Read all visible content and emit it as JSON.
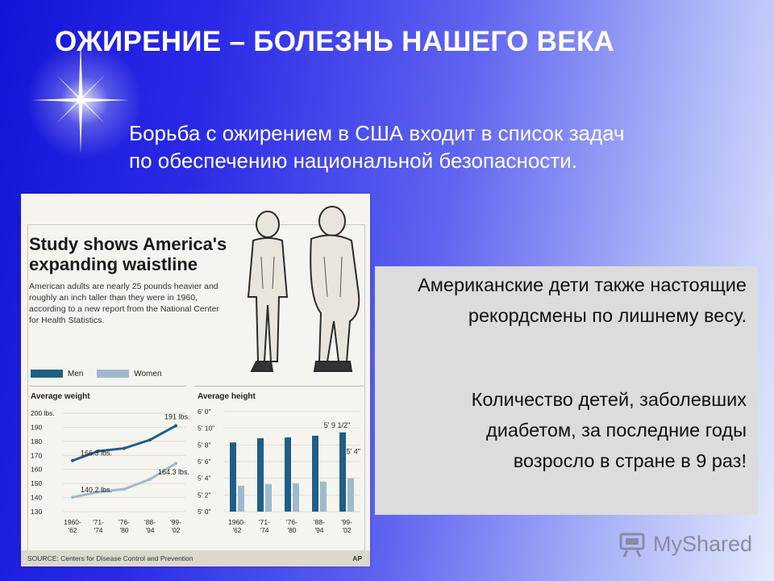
{
  "slide": {
    "title": "ОЖИРЕНИЕ – БОЛЕЗНЬ НАШЕГО ВЕКА",
    "intro_line1": "Борьба с ожирением в США входит в список задач",
    "intro_line2": "по обеспечению национальной безопасности.",
    "box_para1": "Американские дети  также настоящие рекордсмены по лишнему весу.",
    "box_para2": "Количество детей, заболевших  диабетом, за последние годы возросло в стране в 9 раз!",
    "watermark": "MyShared"
  },
  "clipping": {
    "headline_line1": "Study shows America's",
    "headline_line2": "expanding waistline",
    "subtext": "American adults are nearly 25 pounds heavier and roughly an inch taller than they were in 1960, according to a new report from the National Center for Health Statistics.",
    "legend_men": "Men",
    "legend_women": "Women",
    "source": "SOURCE: Centers for Disease Control and Prevention",
    "agency": "AP",
    "colors": {
      "men": "#1f5f86",
      "women": "#9fb9cc"
    }
  },
  "chart_data": [
    {
      "type": "line",
      "title": "Average weight",
      "categories": [
        "1960-\n'62",
        "'71-\n'74",
        "'76-\n'80",
        "'88-\n'94",
        "'99-\n'02"
      ],
      "yticks": [
        "200 lbs.",
        "190",
        "180",
        "170",
        "160",
        "150",
        "140",
        "130"
      ],
      "ylim": [
        130,
        200
      ],
      "series": [
        {
          "name": "Men",
          "values": [
            166.3,
            173,
            175,
            181,
            191
          ]
        },
        {
          "name": "Women",
          "values": [
            140.2,
            144,
            146,
            153,
            164.3
          ]
        }
      ],
      "annotations": [
        "191 lbs.",
        "166.3 lbs.",
        "164.3 lbs.",
        "140.2 lbs."
      ]
    },
    {
      "type": "bar",
      "title": "Average height",
      "categories": [
        "1960-\n'62",
        "'71-\n'74",
        "'76-\n'80",
        "'88-\n'94",
        "'99-\n'02"
      ],
      "yticks": [
        "6' 0\"",
        "5' 10\"",
        "5' 8\"",
        "5' 6\"",
        "5' 4\"",
        "5' 2\"",
        "5' 0\""
      ],
      "ylim": [
        60,
        72
      ],
      "series": [
        {
          "name": "Men",
          "values": [
            68.3,
            68.8,
            68.9,
            69.1,
            69.5
          ]
        },
        {
          "name": "Women",
          "values": [
            63.1,
            63.3,
            63.4,
            63.6,
            64
          ]
        }
      ],
      "annotations": [
        "5' 9 1/2\"",
        "5' 4\""
      ]
    }
  ]
}
